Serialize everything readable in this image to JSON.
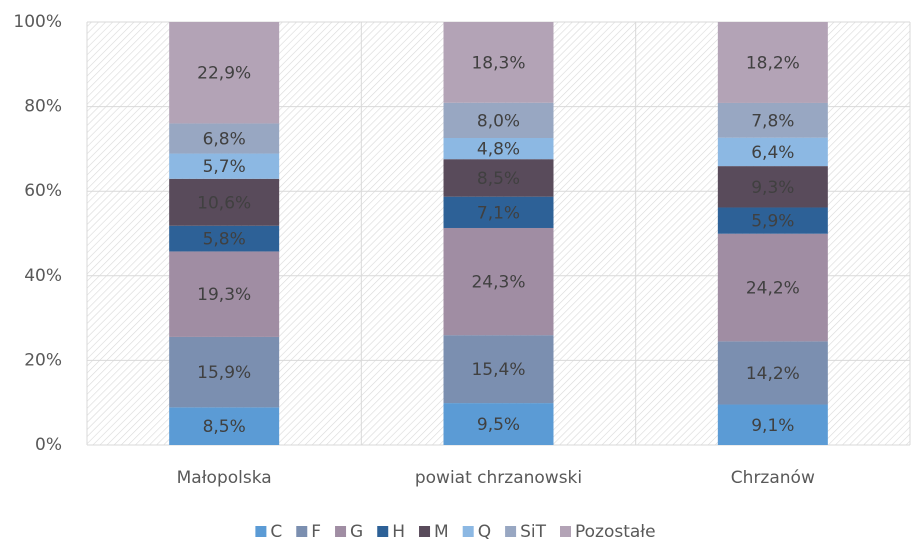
{
  "chart_data": {
    "type": "bar",
    "stacking": "percent",
    "categories": [
      "Małopolska",
      "powiat chrzanowski",
      "Chrzanów"
    ],
    "series": [
      {
        "name": "C",
        "color": "#5b9bd5",
        "values": [
          8.5,
          9.5,
          9.1
        ],
        "value_labels": [
          "8,5%",
          "9,5%",
          "9,1%"
        ]
      },
      {
        "name": "F",
        "color": "#7b8fb0",
        "values": [
          15.9,
          15.4,
          14.2
        ],
        "value_labels": [
          "15,9%",
          "15,4%",
          "14,2%"
        ]
      },
      {
        "name": "G",
        "color": "#a08da3",
        "values": [
          19.3,
          24.3,
          24.2
        ],
        "value_labels": [
          "19,3%",
          "24,3%",
          "24,2%"
        ]
      },
      {
        "name": "H",
        "color": "#2d6197",
        "values": [
          5.8,
          7.1,
          5.9
        ],
        "value_labels": [
          "5,8%",
          "7,1%",
          "5,9%"
        ]
      },
      {
        "name": "M",
        "color": "#594b5b",
        "values": [
          10.6,
          8.5,
          9.3
        ],
        "value_labels": [
          "10,6%",
          "8,5%",
          "9,3%"
        ]
      },
      {
        "name": "Q",
        "color": "#8cb8e3",
        "values": [
          5.7,
          4.8,
          6.4
        ],
        "value_labels": [
          "5,7%",
          "4,8%",
          "6,4%"
        ]
      },
      {
        "name": "SiT",
        "color": "#98a7c2",
        "values": [
          6.8,
          8.0,
          7.8
        ],
        "value_labels": [
          "6,8%",
          "8,0%",
          "7,8%"
        ]
      },
      {
        "name": "Pozostałe",
        "color": "#b3a3b6",
        "values": [
          22.9,
          18.3,
          18.2
        ],
        "value_labels": [
          "22,9%",
          "18,3%",
          "18,2%"
        ]
      }
    ],
    "ylim": [
      0,
      100
    ],
    "yticks": [
      {
        "value": 0,
        "label": "0%"
      },
      {
        "value": 20,
        "label": "20%"
      },
      {
        "value": 40,
        "label": "40%"
      },
      {
        "value": 60,
        "label": "60%"
      },
      {
        "value": 80,
        "label": "80%"
      },
      {
        "value": 100,
        "label": "100%"
      }
    ],
    "grid": true,
    "legend": "bottom"
  }
}
